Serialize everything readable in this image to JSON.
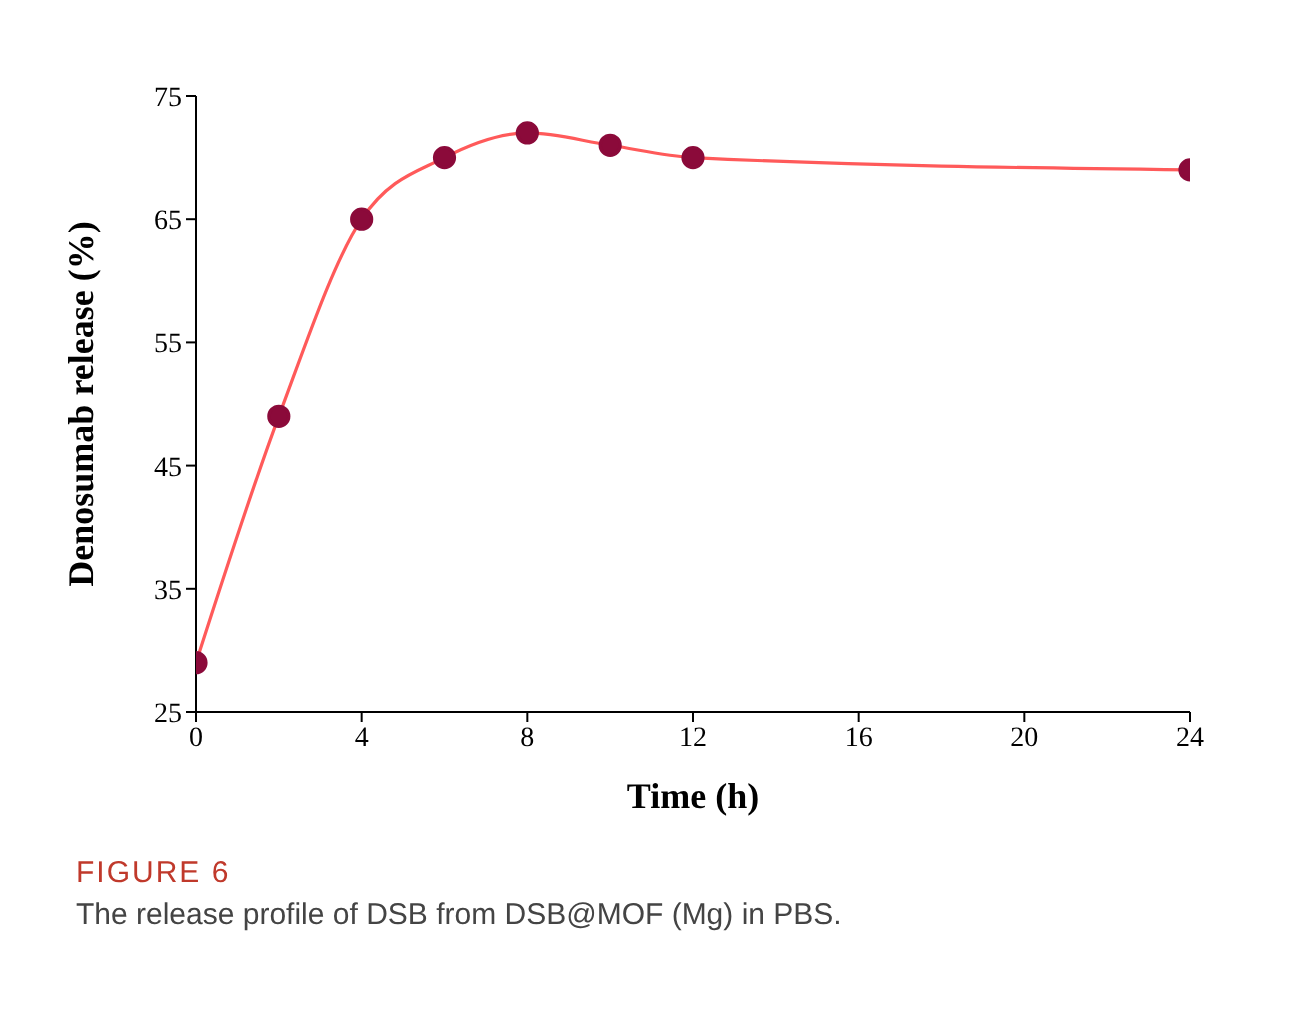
{
  "chart_data": {
    "type": "line",
    "xlabel": "Time (h)",
    "ylabel": "Denosumab release (%)",
    "x": [
      0,
      2,
      4,
      6,
      8,
      10,
      12,
      24
    ],
    "series": [
      {
        "color": "#ff5a5a",
        "values": [
          29,
          49,
          65,
          70,
          72,
          71,
          70,
          69
        ]
      }
    ],
    "xlim": [
      0,
      24
    ],
    "xticks": [
      0,
      4,
      8,
      12,
      16,
      20,
      24
    ],
    "ylim": [
      25,
      75
    ],
    "yticks": [
      25,
      35,
      45,
      55,
      65,
      75
    ],
    "grid": false,
    "legend": false,
    "marker": "circle",
    "line_style": "solid",
    "annotations": [
      "FIGURE 6",
      "The release profile of DSB from DSB@MOF (Mg) in PBS."
    ]
  }
}
